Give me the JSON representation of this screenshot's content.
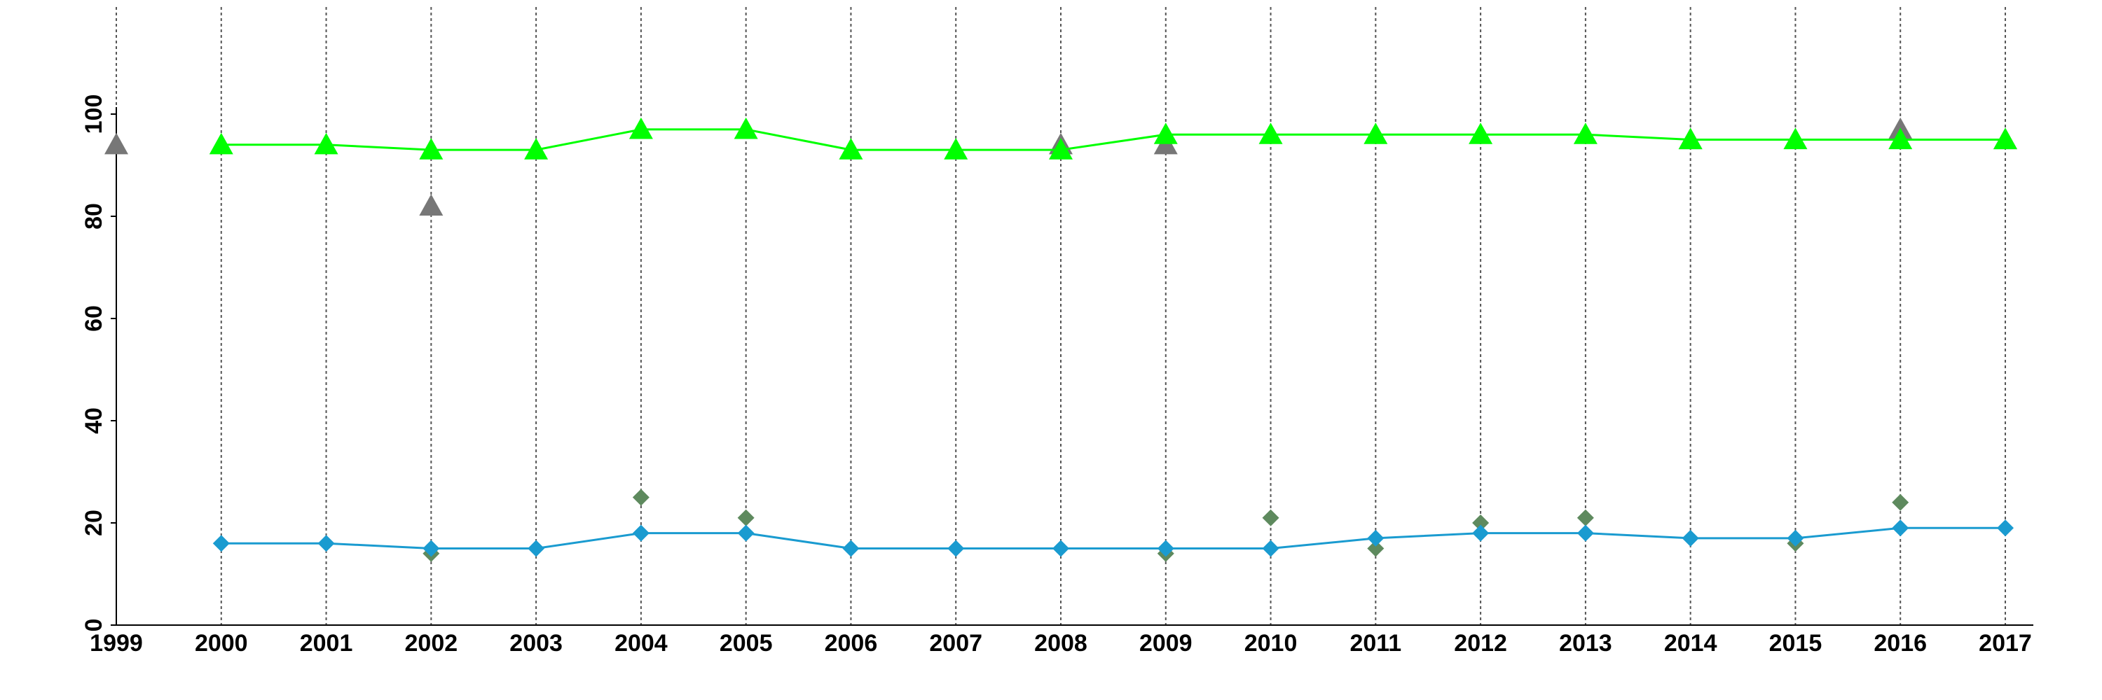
{
  "chart_data": {
    "type": "line",
    "x": [
      1999,
      2000,
      2001,
      2002,
      2003,
      2004,
      2005,
      2006,
      2007,
      2008,
      2009,
      2010,
      2011,
      2012,
      2013,
      2014,
      2015,
      2016,
      2017
    ],
    "xlim": [
      1999,
      2017
    ],
    "xticks": [
      1999,
      2000,
      2001,
      2002,
      2003,
      2004,
      2005,
      2006,
      2007,
      2008,
      2009,
      2010,
      2011,
      2012,
      2013,
      2014,
      2015,
      2016,
      2017
    ],
    "ylim": [
      0,
      100
    ],
    "yticks": [
      0,
      20,
      40,
      60,
      80,
      100
    ],
    "grid": "x",
    "series": [
      {
        "color": "#777777",
        "marker": "triangle",
        "line": false,
        "values": [
          94,
          null,
          null,
          82,
          null,
          null,
          null,
          null,
          null,
          94,
          94,
          null,
          null,
          null,
          null,
          95,
          null,
          97,
          95
        ]
      },
      {
        "color": "#00ff00",
        "marker": "triangle",
        "line": true,
        "values": [
          null,
          94,
          94,
          93,
          93,
          97,
          97,
          93,
          93,
          93,
          96,
          96,
          96,
          96,
          96,
          95,
          95,
          95,
          95
        ]
      },
      {
        "color": "#5e8a5e",
        "marker": "diamond",
        "line": false,
        "values": [
          null,
          null,
          null,
          14,
          null,
          25,
          21,
          null,
          null,
          null,
          14,
          21,
          15,
          20,
          21,
          null,
          16,
          24,
          null
        ]
      },
      {
        "color": "#1a9bd0",
        "marker": "diamond",
        "line": true,
        "values": [
          null,
          16,
          16,
          15,
          15,
          18,
          18,
          15,
          15,
          15,
          15,
          15,
          17,
          18,
          18,
          17,
          17,
          19,
          19
        ]
      }
    ]
  }
}
